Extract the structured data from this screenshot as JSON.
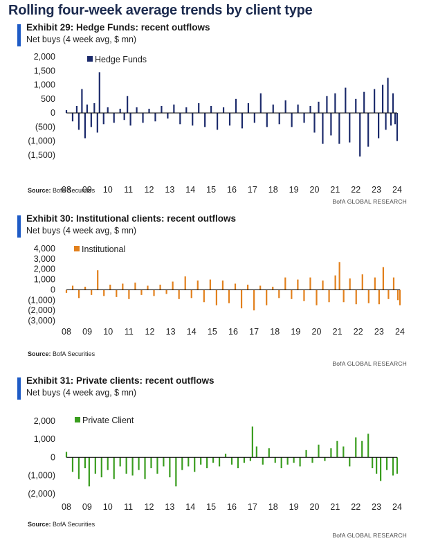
{
  "page_title": "Rolling four-week average trends by client type",
  "chart_data": [
    {
      "type": "bar",
      "exhibit_title": "Exhibit 29: Hedge Funds: recent outflows",
      "ylabel": "Net buys (4 week avg, $ mn)",
      "source_label": "Source:",
      "source_text": "BofA Securities",
      "credit": "BofA GLOBAL RESEARCH",
      "color": "#1b2a6b",
      "ylim": [
        -1700,
        2000
      ],
      "yticks": [
        2000,
        1500,
        1000,
        500,
        0,
        -500,
        -1000,
        -1500
      ],
      "ytick_labels": [
        "2,000",
        "1,500",
        "1,000",
        "500",
        "0",
        "(500)",
        "(1,000)",
        "(1,500)"
      ],
      "xtick_labels": [
        "08",
        "09",
        "10",
        "11",
        "12",
        "13",
        "14",
        "15",
        "16",
        "17",
        "18",
        "19",
        "20",
        "21",
        "22",
        "23",
        "24"
      ],
      "x_range": [
        2008,
        2024
      ],
      "series": [
        {
          "name": "Hedge Funds",
          "values": [
            [
              2008.0,
              100
            ],
            [
              2008.3,
              -300
            ],
            [
              2008.5,
              250
            ],
            [
              2008.6,
              -600
            ],
            [
              2008.75,
              850
            ],
            [
              2008.9,
              -900
            ],
            [
              2009.0,
              300
            ],
            [
              2009.2,
              -500
            ],
            [
              2009.35,
              350
            ],
            [
              2009.5,
              -700
            ],
            [
              2009.6,
              1450
            ],
            [
              2009.8,
              -400
            ],
            [
              2010.0,
              200
            ],
            [
              2010.3,
              -350
            ],
            [
              2010.6,
              150
            ],
            [
              2010.8,
              -250
            ],
            [
              2010.95,
              600
            ],
            [
              2011.1,
              -450
            ],
            [
              2011.4,
              200
            ],
            [
              2011.7,
              -350
            ],
            [
              2012.0,
              150
            ],
            [
              2012.3,
              -300
            ],
            [
              2012.6,
              250
            ],
            [
              2012.9,
              -200
            ],
            [
              2013.2,
              300
            ],
            [
              2013.5,
              -400
            ],
            [
              2013.8,
              200
            ],
            [
              2014.1,
              -450
            ],
            [
              2014.4,
              350
            ],
            [
              2014.7,
              -500
            ],
            [
              2015.0,
              250
            ],
            [
              2015.3,
              -600
            ],
            [
              2015.6,
              200
            ],
            [
              2015.9,
              -450
            ],
            [
              2016.2,
              500
            ],
            [
              2016.5,
              -550
            ],
            [
              2016.8,
              350
            ],
            [
              2017.1,
              -350
            ],
            [
              2017.4,
              700
            ],
            [
              2017.7,
              -500
            ],
            [
              2018.0,
              300
            ],
            [
              2018.3,
              -400
            ],
            [
              2018.6,
              450
            ],
            [
              2018.9,
              -500
            ],
            [
              2019.2,
              300
            ],
            [
              2019.5,
              -350
            ],
            [
              2019.8,
              250
            ],
            [
              2020.0,
              -700
            ],
            [
              2020.2,
              400
            ],
            [
              2020.4,
              -1100
            ],
            [
              2020.6,
              600
            ],
            [
              2020.8,
              -800
            ],
            [
              2021.0,
              700
            ],
            [
              2021.2,
              -1100
            ],
            [
              2021.5,
              900
            ],
            [
              2021.7,
              -1050
            ],
            [
              2022.0,
              500
            ],
            [
              2022.2,
              -1550
            ],
            [
              2022.4,
              750
            ],
            [
              2022.6,
              -1200
            ],
            [
              2022.9,
              850
            ],
            [
              2023.1,
              -900
            ],
            [
              2023.3,
              1000
            ],
            [
              2023.45,
              -600
            ],
            [
              2023.55,
              1250
            ],
            [
              2023.7,
              -450
            ],
            [
              2023.8,
              700
            ],
            [
              2023.9,
              -400
            ],
            [
              2024.0,
              -1000
            ]
          ]
        }
      ]
    },
    {
      "type": "bar",
      "exhibit_title": "Exhibit 30: Institutional clients: recent outflows",
      "ylabel": "Net buys (4 week avg, $ mn)",
      "source_label": "Source:",
      "source_text": "BofA Securities",
      "credit": "BofA GLOBAL RESEARCH",
      "color": "#e2801c",
      "ylim": [
        -3200,
        4200
      ],
      "yticks": [
        4000,
        3000,
        2000,
        1000,
        0,
        -1000,
        -2000,
        -3000
      ],
      "ytick_labels": [
        "4,000",
        "3,000",
        "2,000",
        "1,000",
        "0",
        "(1,000)",
        "(2,000)",
        "(3,000)"
      ],
      "xtick_labels": [
        "08",
        "09",
        "10",
        "11",
        "12",
        "13",
        "14",
        "15",
        "16",
        "17",
        "18",
        "19",
        "20",
        "21",
        "22",
        "23",
        "24"
      ],
      "x_range": [
        2008,
        2024
      ],
      "series": [
        {
          "name": "Institutional",
          "values": [
            [
              2008.0,
              -300
            ],
            [
              2008.3,
              400
            ],
            [
              2008.6,
              -800
            ],
            [
              2008.9,
              300
            ],
            [
              2009.2,
              -500
            ],
            [
              2009.5,
              1900
            ],
            [
              2009.8,
              -600
            ],
            [
              2010.1,
              500
            ],
            [
              2010.4,
              -700
            ],
            [
              2010.7,
              600
            ],
            [
              2011.0,
              -900
            ],
            [
              2011.3,
              700
            ],
            [
              2011.6,
              -500
            ],
            [
              2011.9,
              400
            ],
            [
              2012.2,
              -600
            ],
            [
              2012.5,
              500
            ],
            [
              2012.8,
              -400
            ],
            [
              2013.1,
              800
            ],
            [
              2013.4,
              -900
            ],
            [
              2013.7,
              1300
            ],
            [
              2014.0,
              -800
            ],
            [
              2014.3,
              900
            ],
            [
              2014.6,
              -1200
            ],
            [
              2014.9,
              1000
            ],
            [
              2015.2,
              -1500
            ],
            [
              2015.5,
              900
            ],
            [
              2015.8,
              -1300
            ],
            [
              2016.1,
              600
            ],
            [
              2016.4,
              -1800
            ],
            [
              2016.7,
              500
            ],
            [
              2017.0,
              -2000
            ],
            [
              2017.3,
              400
            ],
            [
              2017.6,
              -1500
            ],
            [
              2017.9,
              300
            ],
            [
              2018.2,
              -800
            ],
            [
              2018.5,
              1200
            ],
            [
              2018.8,
              -900
            ],
            [
              2019.1,
              1000
            ],
            [
              2019.4,
              -1100
            ],
            [
              2019.7,
              1200
            ],
            [
              2020.0,
              -1500
            ],
            [
              2020.3,
              900
            ],
            [
              2020.6,
              -1200
            ],
            [
              2020.9,
              1400
            ],
            [
              2021.1,
              2700
            ],
            [
              2021.3,
              -1200
            ],
            [
              2021.6,
              1100
            ],
            [
              2021.9,
              -1400
            ],
            [
              2022.2,
              1500
            ],
            [
              2022.5,
              -1300
            ],
            [
              2022.8,
              1200
            ],
            [
              2023.0,
              -1400
            ],
            [
              2023.2,
              2200
            ],
            [
              2023.45,
              -900
            ],
            [
              2023.7,
              1200
            ],
            [
              2023.9,
              -1000
            ],
            [
              2024.0,
              -1500
            ]
          ]
        }
      ]
    },
    {
      "type": "bar",
      "exhibit_title": "Exhibit 31: Private clients: recent outflows",
      "ylabel": "Net buys (4 week avg, $ mn)",
      "source_label": "Source:",
      "source_text": "BofA Securities",
      "credit": "BofA GLOBAL RESEARCH",
      "color": "#3a9d1f",
      "ylim": [
        -2200,
        2300
      ],
      "yticks": [
        2000,
        1000,
        0,
        -1000,
        -2000
      ],
      "ytick_labels": [
        "2,000",
        "1,000",
        "0",
        "(1,000)",
        "(2,000)"
      ],
      "xtick_labels": [
        "08",
        "09",
        "10",
        "11",
        "12",
        "13",
        "14",
        "15",
        "16",
        "17",
        "18",
        "19",
        "20",
        "21",
        "22",
        "23",
        "24"
      ],
      "x_range": [
        2008,
        2024
      ],
      "series": [
        {
          "name": "Private Client",
          "values": [
            [
              2008.0,
              300
            ],
            [
              2008.3,
              -800
            ],
            [
              2008.6,
              -1200
            ],
            [
              2008.9,
              -600
            ],
            [
              2009.1,
              -1600
            ],
            [
              2009.4,
              -900
            ],
            [
              2009.7,
              -1100
            ],
            [
              2010.0,
              -700
            ],
            [
              2010.3,
              -1200
            ],
            [
              2010.6,
              -500
            ],
            [
              2010.9,
              -900
            ],
            [
              2011.2,
              -1000
            ],
            [
              2011.5,
              -700
            ],
            [
              2011.8,
              -1200
            ],
            [
              2012.1,
              -600
            ],
            [
              2012.4,
              -900
            ],
            [
              2012.7,
              -500
            ],
            [
              2013.0,
              -1100
            ],
            [
              2013.3,
              -1600
            ],
            [
              2013.6,
              -700
            ],
            [
              2013.9,
              -500
            ],
            [
              2014.2,
              -800
            ],
            [
              2014.5,
              -400
            ],
            [
              2014.8,
              -600
            ],
            [
              2015.1,
              -300
            ],
            [
              2015.4,
              -500
            ],
            [
              2015.7,
              200
            ],
            [
              2016.0,
              -400
            ],
            [
              2016.3,
              -600
            ],
            [
              2016.6,
              -300
            ],
            [
              2016.9,
              -200
            ],
            [
              2017.0,
              1700
            ],
            [
              2017.2,
              600
            ],
            [
              2017.5,
              -400
            ],
            [
              2017.8,
              500
            ],
            [
              2018.1,
              -300
            ],
            [
              2018.4,
              -600
            ],
            [
              2018.7,
              -400
            ],
            [
              2019.0,
              -300
            ],
            [
              2019.3,
              -500
            ],
            [
              2019.6,
              400
            ],
            [
              2019.9,
              -300
            ],
            [
              2020.2,
              700
            ],
            [
              2020.5,
              -200
            ],
            [
              2020.8,
              500
            ],
            [
              2021.1,
              900
            ],
            [
              2021.4,
              600
            ],
            [
              2021.7,
              -500
            ],
            [
              2022.0,
              1100
            ],
            [
              2022.3,
              900
            ],
            [
              2022.6,
              1300
            ],
            [
              2022.8,
              -600
            ],
            [
              2023.0,
              -900
            ],
            [
              2023.2,
              -1300
            ],
            [
              2023.5,
              -700
            ],
            [
              2023.8,
              -1000
            ],
            [
              2024.0,
              -900
            ]
          ]
        }
      ]
    }
  ]
}
